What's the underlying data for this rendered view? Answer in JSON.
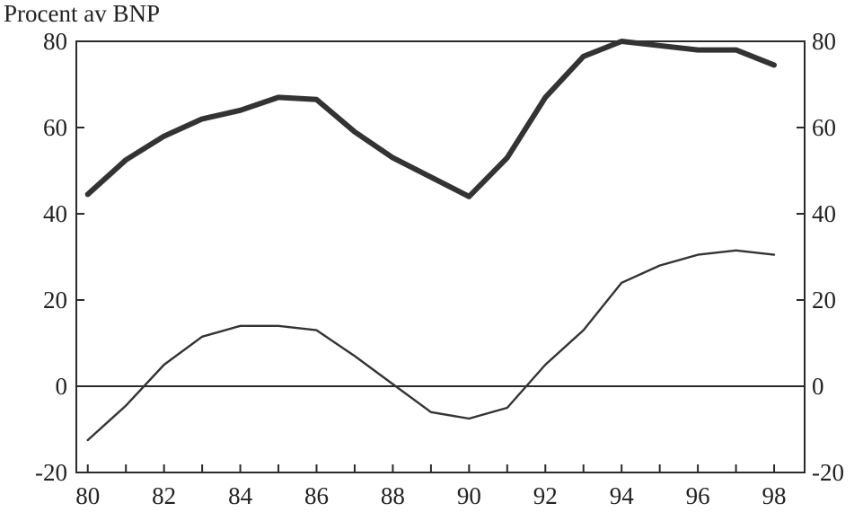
{
  "chart_data": {
    "type": "line",
    "ylabel": "Procent av BNP",
    "x": [
      80,
      81,
      82,
      83,
      84,
      85,
      86,
      87,
      88,
      89,
      90,
      91,
      92,
      93,
      94,
      95,
      96,
      97,
      98
    ],
    "xticks": [
      80,
      82,
      84,
      86,
      88,
      90,
      92,
      94,
      96,
      98
    ],
    "xtick_labels": [
      "80",
      "82",
      "84",
      "86",
      "88",
      "90",
      "92",
      "94",
      "96",
      "98"
    ],
    "yticks": [
      -20,
      0,
      20,
      40,
      60,
      80
    ],
    "ytick_labels": [
      "-20",
      "0",
      "20",
      "40",
      "60",
      "80"
    ],
    "xlim": [
      79.7,
      98.8
    ],
    "ylim": [
      -20,
      80
    ],
    "grid": false,
    "zero_line": true,
    "series": [
      {
        "color": "#333333",
        "values": [
          44.5,
          52.5,
          58,
          62,
          64,
          67,
          66.5,
          59,
          53,
          48.5,
          44,
          53,
          67,
          76.5,
          80,
          79,
          78,
          78,
          74.5
        ]
      },
      {
        "color": "#333333",
        "values": [
          -12.5,
          -4.5,
          5,
          11.5,
          14,
          14,
          13,
          7,
          0.5,
          -6,
          -7.5,
          -5,
          5,
          13,
          24,
          28,
          30.5,
          31.5,
          30.5
        ]
      }
    ]
  }
}
